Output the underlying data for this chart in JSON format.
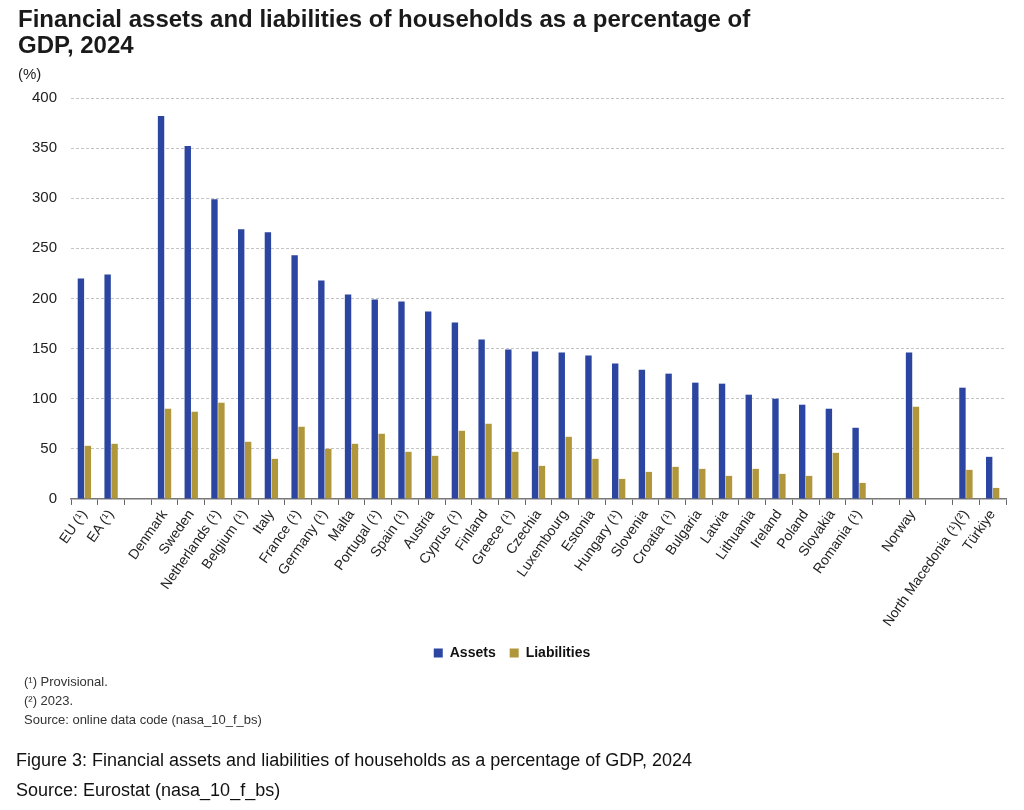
{
  "chart_data": {
    "type": "bar",
    "title": "Financial assets and liabilities of households as a percentage of GDP, 2024",
    "ylabel": "(%)",
    "categories": [
      "EU (¹)",
      "EA (¹)",
      null,
      "Denmark",
      "Sweden",
      "Netherlands (¹)",
      "Belgium (¹)",
      "Italy",
      "France (¹)",
      "Germany (¹)",
      "Malta",
      "Portugal (¹)",
      "Spain (¹)",
      "Austria",
      "Cyprus (¹)",
      "Finland",
      "Greece (¹)",
      "Czechia",
      "Luxembourg",
      "Estonia",
      "Hungary (¹)",
      "Slovenia",
      "Croatia (¹)",
      "Bulgaria",
      "Latvia",
      "Lithuania",
      "Ireland",
      "Poland",
      "Slovakia",
      "Romania (¹)",
      null,
      "Norway",
      null,
      "North Macedonia (¹)(²)",
      "Türkiye"
    ],
    "series": [
      {
        "name": "Assets",
        "color": "#2b45a1",
        "values": [
          220,
          224,
          null,
          382,
          352,
          299,
          269,
          266,
          243,
          218,
          204,
          199,
          197,
          187,
          176,
          159,
          149,
          147,
          146,
          143,
          135,
          129,
          125,
          116,
          115,
          104,
          100,
          94,
          90,
          71,
          null,
          146,
          null,
          111,
          42
        ]
      },
      {
        "name": "Liabilities",
        "color": "#b1973b",
        "values": [
          53,
          55,
          null,
          90,
          87,
          96,
          57,
          40,
          72,
          50,
          55,
          65,
          47,
          43,
          68,
          75,
          47,
          33,
          62,
          40,
          20,
          27,
          32,
          30,
          23,
          30,
          25,
          23,
          46,
          16,
          null,
          92,
          null,
          29,
          11
        ]
      }
    ],
    "ylim": [
      0,
      400
    ],
    "yticks": [
      0,
      50,
      100,
      150,
      200,
      250,
      300,
      350,
      400
    ],
    "grid": "y",
    "legend": "bottom",
    "annotations": [
      "(¹) Provisional.",
      "(²) 2023.",
      "Source: online data code (nasa_10_f_bs)",
      "Figure 3: Financial assets and liabilities of households as a percentage of GDP, 2024",
      "Source: Eurostat (nasa_10_f_bs)"
    ]
  }
}
